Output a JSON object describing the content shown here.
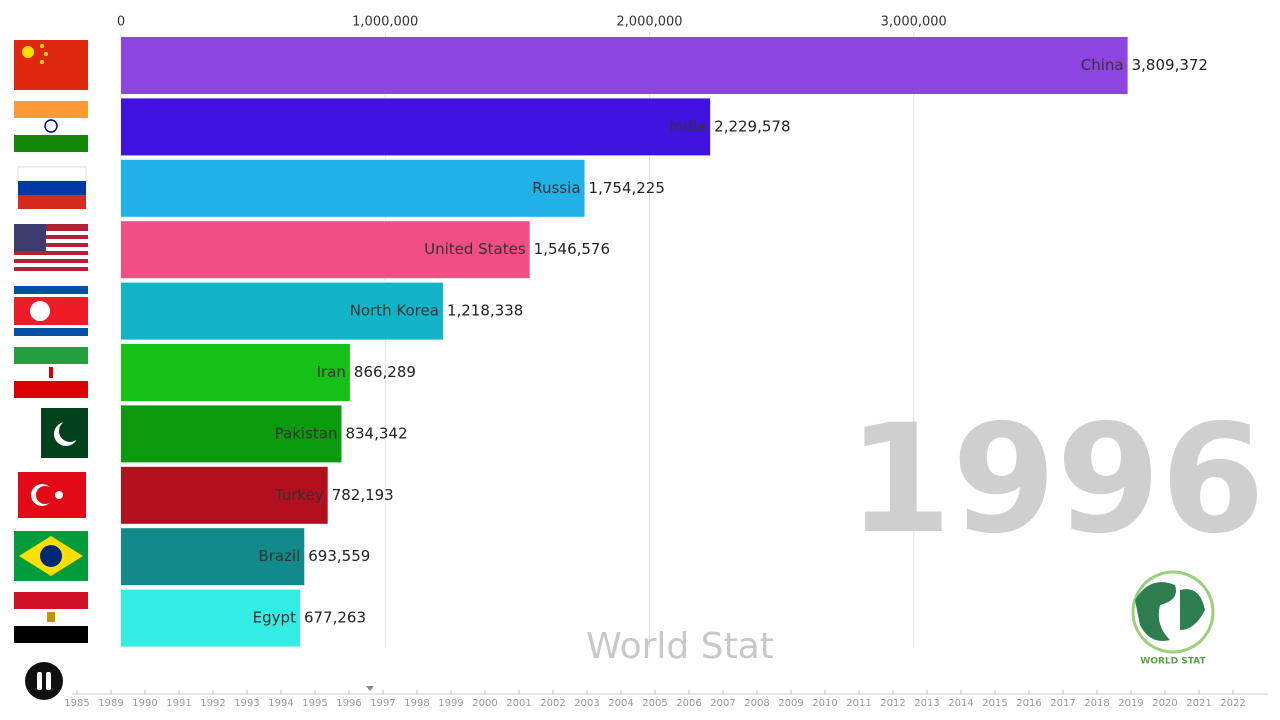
{
  "chart_data": {
    "type": "bar",
    "orientation": "horizontal",
    "categories": [
      "China",
      "India",
      "Russia",
      "United States",
      "North Korea",
      "Iran",
      "Pakistan",
      "Turkey",
      "Brazil",
      "Egypt"
    ],
    "values": [
      3809372,
      2229578,
      1754225,
      1546576,
      1218338,
      866289,
      834342,
      782193,
      693559,
      677263
    ],
    "value_labels": [
      "3,809,372",
      "2,229,578",
      "1,754,225",
      "1,546,576",
      "1,218,338",
      "866,289",
      "834,342",
      "782,193",
      "693,559",
      "677,263"
    ],
    "colors": [
      "#8e44e0",
      "#3f12e0",
      "#21b0e8",
      "#f04e85",
      "#12b5c8",
      "#16c016",
      "#0b9a0b",
      "#b30f1f",
      "#138a8a",
      "#33ede5"
    ],
    "xlim": [
      0,
      4000000
    ],
    "xticks": [
      0,
      {
        "value": 1000000,
        "label": "1,000,000"
      },
      {
        "value": 2000000,
        "label": "2,000,000"
      },
      {
        "value": 3000000,
        "label": "3,000,000"
      }
    ],
    "grid": true
  },
  "year_label": "1996",
  "watermark": "World Stat",
  "logo_text": "WORLD STAT",
  "timeline_years": [
    "1985",
    "1989",
    "1990",
    "1991",
    "1992",
    "1993",
    "1994",
    "1995",
    "1996",
    "1997",
    "1998",
    "1999",
    "2000",
    "2001",
    "2002",
    "2003",
    "2004",
    "2005",
    "2006",
    "2007",
    "2008",
    "2009",
    "2010",
    "2011",
    "2012",
    "2013",
    "2014",
    "2015",
    "2016",
    "2017",
    "2018",
    "2019",
    "2020",
    "2021",
    "2022"
  ]
}
